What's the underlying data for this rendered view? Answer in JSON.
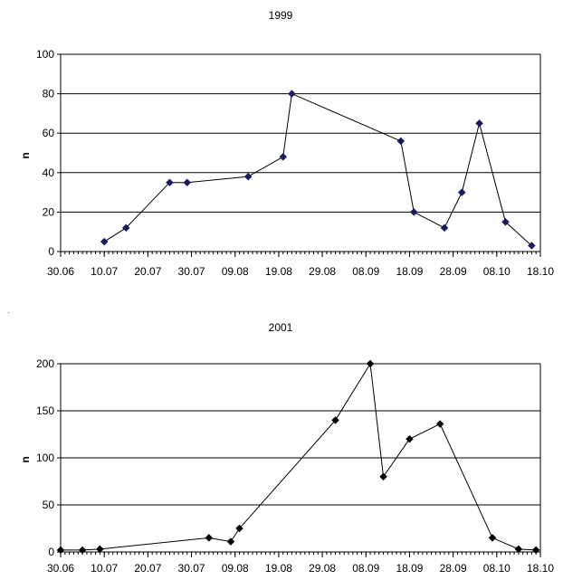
{
  "chart_data": [
    {
      "type": "line",
      "title": "1999",
      "xlabel": "",
      "ylabel": "n",
      "x_ticks": [
        "30.06",
        "10.07",
        "20.07",
        "30.07",
        "09.08",
        "19.08",
        "29.08",
        "08.09",
        "18.09",
        "28.09",
        "08.10",
        "18.10"
      ],
      "x_range": [
        "1999-06-30",
        "1999-10-18"
      ],
      "ylim": [
        0,
        100
      ],
      "y_ticks": [
        0,
        20,
        40,
        60,
        80,
        100
      ],
      "grid": true,
      "legend": "none",
      "marker": "diamond",
      "line_color": "#000000",
      "marker_color": "#1a1a5e",
      "x": [
        "1999-07-10",
        "1999-07-15",
        "1999-07-25",
        "1999-07-29",
        "1999-08-12",
        "1999-08-20",
        "1999-08-22",
        "1999-09-16",
        "1999-09-19",
        "1999-09-26",
        "1999-09-30",
        "1999-10-04",
        "1999-10-10",
        "1999-10-16"
      ],
      "values": [
        5,
        12,
        35,
        35,
        38,
        48,
        80,
        56,
        20,
        12,
        30,
        65,
        15,
        3
      ]
    },
    {
      "type": "line",
      "title": "2001",
      "xlabel": "",
      "ylabel": "n",
      "x_ticks": [
        "30.06",
        "10.07",
        "20.07",
        "30.07",
        "09.08",
        "19.08",
        "29.08",
        "08.09",
        "18.09",
        "28.09",
        "08.10",
        "18.10"
      ],
      "x_range": [
        "2001-06-30",
        "2001-10-18"
      ],
      "ylim": [
        0,
        200
      ],
      "y_ticks": [
        0,
        50,
        100,
        150,
        200
      ],
      "grid": true,
      "legend": "none",
      "marker": "diamond",
      "line_color": "#000000",
      "marker_color": "#000000",
      "x": [
        "2001-06-30",
        "2001-07-05",
        "2001-07-09",
        "2001-08-03",
        "2001-08-08",
        "2001-08-10",
        "2001-09-01",
        "2001-09-09",
        "2001-09-12",
        "2001-09-18",
        "2001-09-25",
        "2001-10-07",
        "2001-10-13",
        "2001-10-17"
      ],
      "values": [
        2,
        2,
        3,
        15,
        11,
        25,
        140,
        200,
        80,
        120,
        136,
        15,
        3,
        2
      ]
    }
  ]
}
